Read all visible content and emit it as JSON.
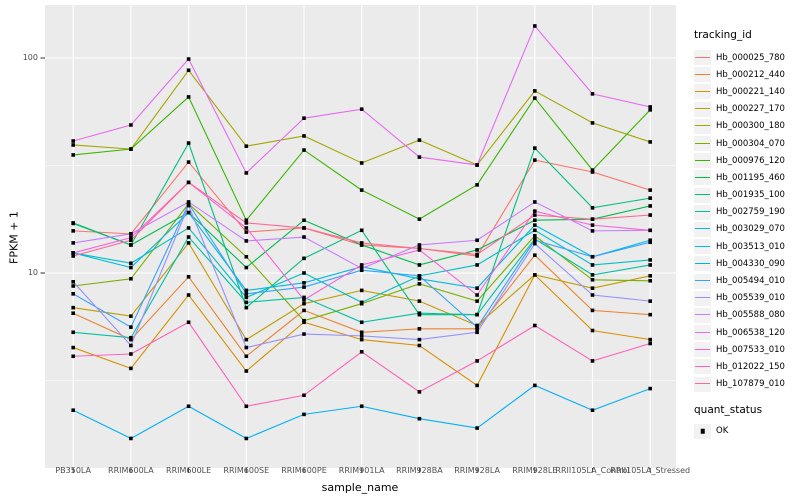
{
  "chart_data": {
    "type": "line",
    "x_axis": {
      "label": "sample_name",
      "categories": [
        "PB350LA",
        "RRIM600LA",
        "RRIM600LE",
        "RRIM600SE",
        "RRIM600PE",
        "RRIM901LA",
        "RRIM928BA",
        "RRIM928LA",
        "RRIM928LE",
        "RRII105LA_Control",
        "RRII105LA_Stressed"
      ]
    },
    "y_axis": {
      "label": "FPKM + 1",
      "scale": "log10",
      "tick_labels": [
        "100",
        "10"
      ],
      "tick_values": [
        100,
        10
      ],
      "minor_grid_values": [
        31.62,
        3.162
      ],
      "range_approx": [
        1.6,
        150
      ]
    },
    "panel": {
      "background": "#EBEBEB",
      "grid_color": "#FFFFFF",
      "axis_text_color": "#4d4d4d"
    },
    "marker": {
      "shape": "square",
      "color": "#000000",
      "legend_label": "OK"
    },
    "legend": {
      "title": "tracking_id",
      "position": "right"
    },
    "legend2": {
      "title": "quant_status",
      "items": [
        {
          "label": "OK"
        }
      ]
    },
    "series": [
      {
        "name": "Hb_000025_780",
        "color": "#F8766D",
        "values": [
          15.7,
          15.2,
          32.8,
          15.5,
          16.2,
          13.5,
          13.0,
          12.0,
          33.5,
          29.5,
          24.3
        ]
      },
      {
        "name": "Hb_000212_440",
        "color": "#EA8331",
        "values": [
          6.5,
          4.9,
          9.6,
          4.1,
          6.7,
          5.3,
          5.5,
          5.5,
          12.1,
          6.7,
          6.4
        ]
      },
      {
        "name": "Hb_000221_140",
        "color": "#D89000",
        "values": [
          4.5,
          3.6,
          7.9,
          3.5,
          5.9,
          4.9,
          4.6,
          3.0,
          9.8,
          5.4,
          4.9
        ]
      },
      {
        "name": "Hb_000227_170",
        "color": "#C09B00",
        "values": [
          6.9,
          6.3,
          13.8,
          4.9,
          7.2,
          8.3,
          7.4,
          5.7,
          9.8,
          8.5,
          9.7
        ]
      },
      {
        "name": "Hb_000300_180",
        "color": "#A3A500",
        "values": [
          39.4,
          37.7,
          87.7,
          38.9,
          43.4,
          32.5,
          41.5,
          31.8,
          70.3,
          49.9,
          40.7
        ]
      },
      {
        "name": "Hb_000304_070",
        "color": "#7CAE00",
        "values": [
          8.7,
          9.4,
          21.0,
          11.9,
          6.0,
          7.2,
          8.9,
          7.4,
          14.9,
          9.3,
          9.2
        ]
      },
      {
        "name": "Hb_000976_120",
        "color": "#39B600",
        "values": [
          35.4,
          37.7,
          65.9,
          17.6,
          37.3,
          24.3,
          17.8,
          25.7,
          65.1,
          30.1,
          57.4
        ]
      },
      {
        "name": "Hb_001195_460",
        "color": "#00BB4E",
        "values": [
          17.1,
          13.5,
          19.1,
          10.6,
          17.6,
          13.5,
          10.9,
          12.8,
          17.6,
          17.8,
          20.5
        ]
      },
      {
        "name": "Hb_001935_100",
        "color": "#00BF7D",
        "values": [
          17.0,
          13.5,
          40.2,
          6.9,
          11.7,
          15.8,
          6.4,
          6.4,
          38.1,
          20.1,
          22.3
        ]
      },
      {
        "name": "Hb_002759_190",
        "color": "#00C1A3",
        "values": [
          5.3,
          5.0,
          14.7,
          7.3,
          7.7,
          5.9,
          6.5,
          6.4,
          14.4,
          9.8,
          10.9
        ]
      },
      {
        "name": "Hb_003029_070",
        "color": "#00BFC4",
        "values": [
          12.4,
          11.1,
          16.2,
          7.7,
          10.0,
          7.3,
          9.7,
          10.9,
          15.8,
          10.9,
          11.5
        ]
      },
      {
        "name": "Hb_003513_010",
        "color": "#00BAE0",
        "values": [
          12.4,
          10.6,
          19.1,
          8.3,
          9.0,
          10.7,
          9.4,
          8.5,
          16.7,
          11.9,
          14.2
        ]
      },
      {
        "name": "Hb_004330_090",
        "color": "#00B0F6",
        "values": [
          2.3,
          1.7,
          2.4,
          1.7,
          2.2,
          2.4,
          2.1,
          1.9,
          3.0,
          2.3,
          2.9
        ]
      },
      {
        "name": "Hb_005494_010",
        "color": "#35A2FF",
        "values": [
          8.0,
          5.6,
          21.0,
          8.0,
          8.6,
          10.3,
          9.7,
          5.6,
          14.2,
          11.9,
          13.9
        ]
      },
      {
        "name": "Hb_005539_010",
        "color": "#9590FF",
        "values": [
          9.1,
          4.6,
          20.6,
          4.5,
          5.2,
          5.1,
          4.9,
          5.3,
          13.7,
          7.9,
          7.4
        ]
      },
      {
        "name": "Hb_005588_080",
        "color": "#C77CFF",
        "values": [
          13.8,
          15.2,
          21.4,
          14.1,
          14.7,
          10.5,
          13.5,
          14.2,
          21.4,
          15.7,
          15.8
        ]
      },
      {
        "name": "Hb_006538_120",
        "color": "#E76BF3",
        "values": [
          41.1,
          48.8,
          98.9,
          29.2,
          52.5,
          57.8,
          34.6,
          31.8,
          140.9,
          68.1,
          59.2
        ]
      },
      {
        "name": "Hb_007533_010",
        "color": "#FA62DB",
        "values": [
          12.4,
          14.6,
          26.4,
          16.2,
          7.5,
          10.9,
          12.8,
          7.9,
          19.4,
          16.7,
          15.8
        ]
      },
      {
        "name": "Hb_012022_150",
        "color": "#FF62BC",
        "values": [
          4.1,
          4.2,
          5.9,
          2.4,
          2.7,
          4.3,
          2.8,
          3.9,
          5.7,
          3.9,
          4.7
        ]
      },
      {
        "name": "Hb_107879_010",
        "color": "#FF6A98",
        "values": [
          12.0,
          14.2,
          26.4,
          17.1,
          16.2,
          13.8,
          13.0,
          12.2,
          18.6,
          17.8,
          18.6
        ]
      }
    ]
  }
}
